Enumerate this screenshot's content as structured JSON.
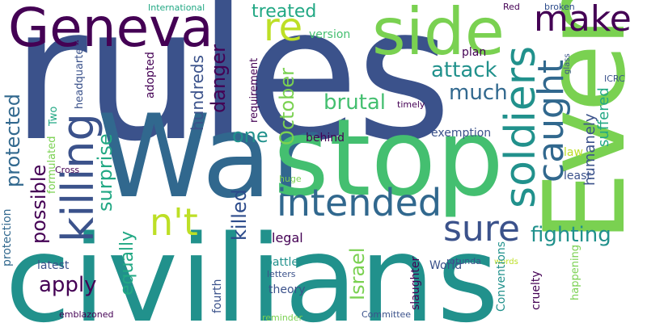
{
  "colors": {
    "background": "#ffffff",
    "deep_purple": "#440154",
    "indigo": "#3b528b",
    "blue": "#31688e",
    "teal": "#21918c",
    "green_teal": "#22a884",
    "green": "#44bf70",
    "lime": "#7ad151",
    "yellow_green": "#bddf26",
    "dark_blue": "#2c4b8b"
  },
  "words": {
    "rules": "rules",
    "civilians": "civilians",
    "war": "War",
    "stop": "stop",
    "even": "Even",
    "geneva": "Geneva",
    "side": "side",
    "re": "re",
    "killing": "killing",
    "soldiers": "soldiers",
    "caught": "caught",
    "make": "make",
    "intended": "intended",
    "nt": "n't",
    "sure": "sure",
    "fighting": "fighting",
    "attack": "attack",
    "much": "much",
    "brutal": "brutal",
    "treated": "treated",
    "danger": "danger",
    "hundreds": "hundreds",
    "killed": "killed",
    "surprise": "surprise",
    "possible": "possible",
    "protected": "protected",
    "october": "October",
    "one": "one",
    "apply": "apply",
    "equally": "equally",
    "israel": "Israel",
    "legal": "legal",
    "humanely": "humanely",
    "suffered": "suffered",
    "version": "version",
    "plan": "plan",
    "headquarters": "headquarters",
    "international": "International",
    "red": "Red",
    "broken": "broken",
    "glass": "glass",
    "icrc": "ICRC",
    "timely": "timely",
    "adopted": "adopted",
    "requirement": "requirement",
    "two": "Two",
    "behind": "behind",
    "exemption": "exemption",
    "law": "law",
    "least": "least",
    "formulated": "formulated",
    "cross": "Cross",
    "huge": "huge",
    "rotunda": "rotunda",
    "words": "words",
    "world": "World",
    "battle": "battle",
    "latest": "latest",
    "letters": "letters",
    "theory": "theory",
    "slaughter": "slaughter",
    "conventions": "Conventions",
    "happening": "happening",
    "cruelty": "cruelty",
    "fourth": "fourth",
    "protection": "protection",
    "emblazoned": "emblazoned",
    "reminder": "reminder",
    "committee": "Committee"
  }
}
